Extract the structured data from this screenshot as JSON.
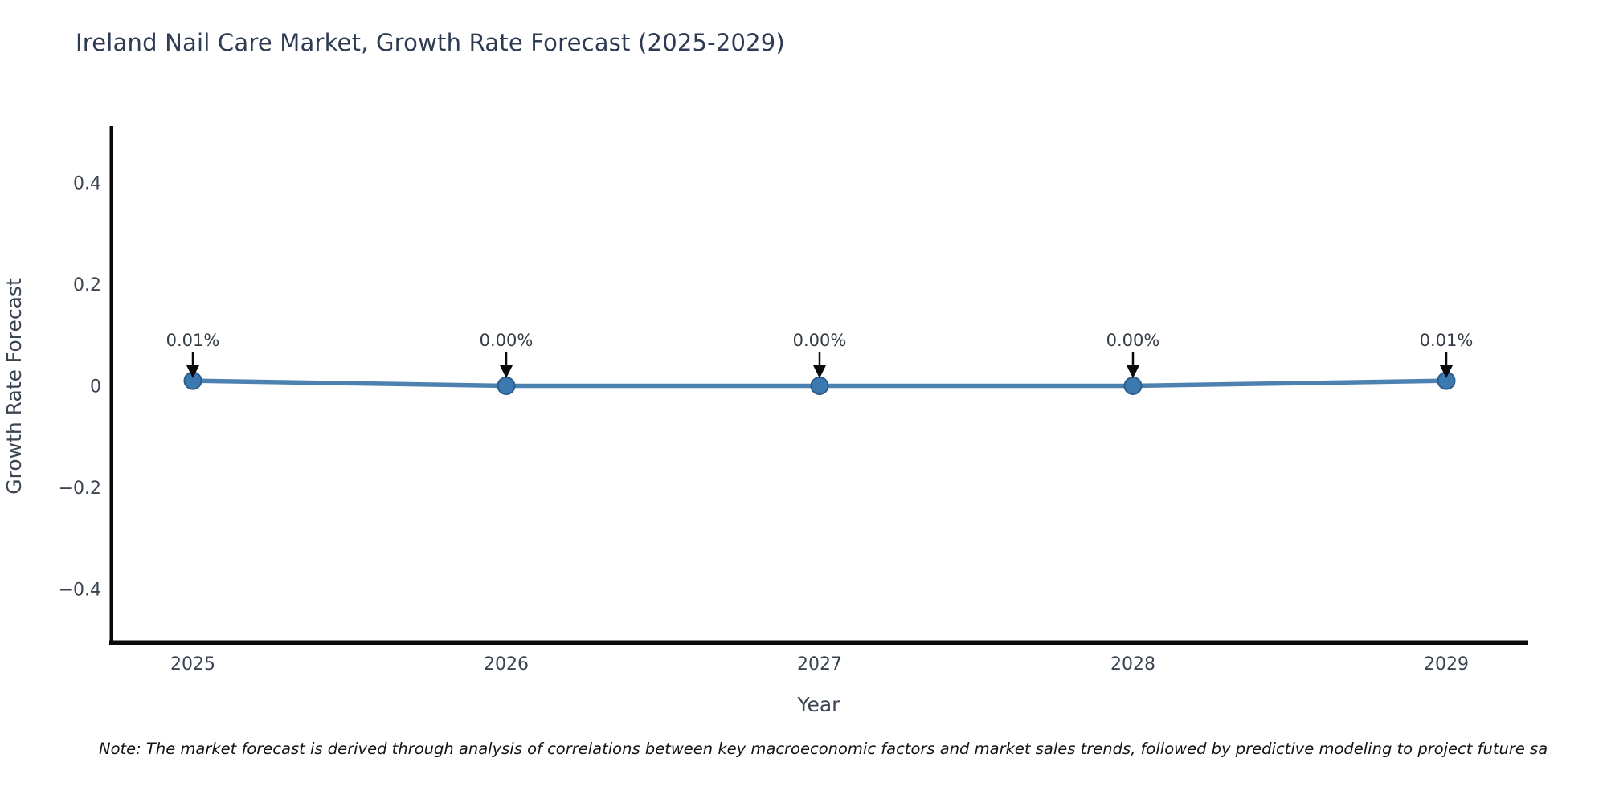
{
  "title": "Ireland Nail Care Market, Growth Rate Forecast (2025-2029)",
  "chart_data": {
    "type": "line",
    "title": "Ireland Nail Care Market, Growth Rate Forecast (2025-2029)",
    "xlabel": "Year",
    "ylabel": "Growth Rate Forecast",
    "categories": [
      "2025",
      "2026",
      "2027",
      "2028",
      "2029"
    ],
    "series": [
      {
        "name": "Growth Rate Forecast",
        "values": [
          0.01,
          0.0,
          0.0,
          0.0,
          0.01
        ],
        "point_labels": [
          "0.01%",
          "0.00%",
          "0.00%",
          "0.00%",
          "0.01%"
        ]
      }
    ],
    "annotations": "each point labeled with percent value and a black downward arrow",
    "yticks": {
      "values": [
        0.4,
        0.2,
        0,
        -0.2,
        -0.4
      ],
      "labels": [
        "0.4",
        "0.2",
        "0",
        "−0.2",
        "−0.4"
      ]
    },
    "ylim": [
      -0.51,
      0.51
    ],
    "grid": false,
    "legend_position": "none",
    "colors": {
      "line": "#4d82b0",
      "marker_fill": "#3c79b0",
      "marker_edge": "#2b5d8c",
      "axis": "#0a0a0a",
      "arrow": "#0a0a0a",
      "tick_text": "#3b4451",
      "annotation_text": "#343c46",
      "axis_label_text": "#3b4451",
      "title_text": "#2e3b52",
      "note_text": "#141414"
    }
  },
  "note": {
    "text": "Note: The market forecast is derived through analysis of correlations between key macroeconomic factors and market sales trends, followed by predictive modeling to project future sa"
  }
}
